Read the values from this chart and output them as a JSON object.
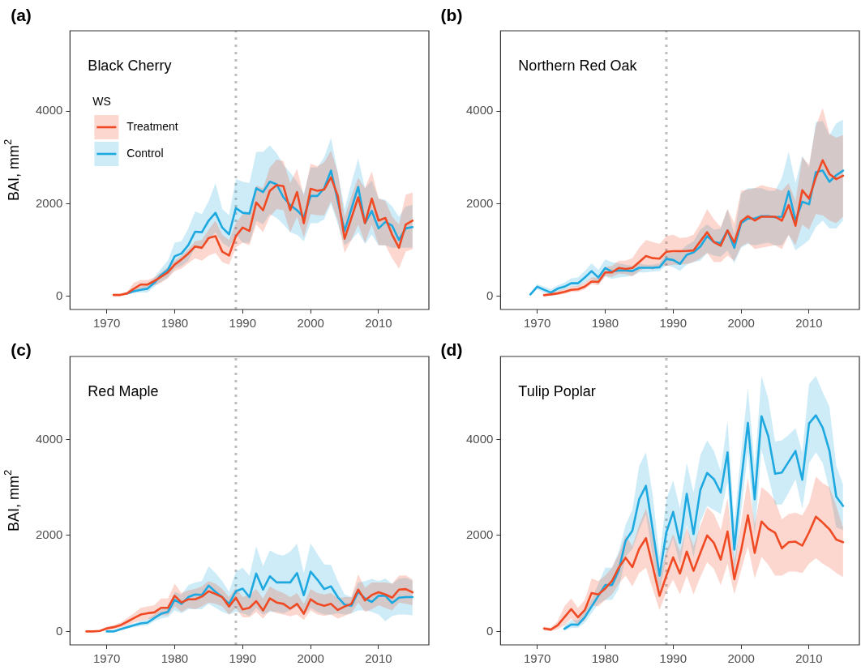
{
  "chart_data": [
    {
      "type": "line",
      "title": "(a)",
      "subtitle": "Black Cherry",
      "ylabel": "BAI, mm$^{2}$",
      "legend": "top left",
      "legend_title": "WS",
      "marker": "none",
      "xlim": [
        1964.6,
        2017.4
      ],
      "xticks": [
        1970,
        1980,
        1990,
        2000,
        2010
      ],
      "ylim": [
        -280,
        5730
      ],
      "yticks": [
        0,
        2000,
        4000
      ],
      "ref_lines": [
        {
          "axis": "x",
          "value": 1989,
          "color": "#bdbdbd",
          "line_style": "dotted"
        }
      ],
      "x": [
        1971,
        1972,
        1973,
        1974,
        1975,
        1976,
        1977,
        1978,
        1979,
        1980,
        1981,
        1982,
        1983,
        1984,
        1985,
        1986,
        1987,
        1988,
        1989,
        1990,
        1991,
        1992,
        1993,
        1994,
        1995,
        1996,
        1997,
        1998,
        1999,
        2000,
        2001,
        2002,
        2003,
        2004,
        2005,
        2006,
        2007,
        2008,
        2009,
        2010,
        2011,
        2012,
        2013,
        2014,
        2015
      ],
      "series": [
        {
          "name": "Treatment",
          "color": "#ef4a24",
          "values": [
            33,
            33,
            67,
            168,
            257,
            257,
            335,
            425,
            520,
            687,
            800,
            927,
            1078,
            1050,
            1263,
            1302,
            967,
            883,
            1302,
            1486,
            1413,
            2028,
            1860,
            2280,
            2402,
            2380,
            1860,
            2252,
            1581,
            2324,
            2280,
            2307,
            2570,
            2168,
            1246,
            1693,
            2140,
            1581,
            2112,
            1637,
            1693,
            1330,
            1050,
            1553,
            1637
          ],
          "upper": [
            60,
            60,
            100,
            296,
            352,
            352,
            408,
            520,
            631,
            771,
            883,
            1022,
            1190,
            1218,
            1441,
            1637,
            1330,
            1218,
            1581,
            1777,
            1833,
            2391,
            2335,
            2782,
            2950,
            2922,
            2447,
            2754,
            2168,
            2866,
            2810,
            2894,
            3145,
            2671,
            1721,
            2168,
            2559,
            2335,
            2699,
            2112,
            2056,
            1721,
            1553,
            2196,
            2240
          ],
          "lower": [
            10,
            10,
            40,
            112,
            168,
            184,
            240,
            296,
            391,
            548,
            603,
            715,
            827,
            771,
            883,
            939,
            743,
            687,
            1050,
            1162,
            1106,
            1553,
            1386,
            1721,
            1888,
            1860,
            1386,
            1721,
            1274,
            1777,
            1749,
            1749,
            2056,
            1637,
            939,
            1218,
            1553,
            1162,
            1553,
            1106,
            1106,
            827,
            603,
            967,
            1022
          ]
        },
        {
          "name": "Control",
          "color": "#1ea8e0",
          "values": [
            null,
            null,
            67,
            112,
            145,
            168,
            296,
            464,
            575,
            866,
            927,
            1106,
            1397,
            1386,
            1637,
            1805,
            1486,
            1341,
            1905,
            1805,
            1788,
            2335,
            2252,
            2475,
            2419,
            2140,
            1972,
            1860,
            1710,
            2168,
            2168,
            2335,
            2715,
            2056,
            1413,
            1888,
            2363,
            1581,
            1844,
            1469,
            1609,
            1525,
            1218,
            1469,
            1497
          ],
          "upper": [
            null,
            null,
            100,
            156,
            212,
            268,
            408,
            603,
            771,
            1162,
            1190,
            1469,
            1833,
            1777,
            2056,
            2447,
            1888,
            1749,
            2531,
            2475,
            2447,
            3118,
            3118,
            3257,
            3090,
            2838,
            2671,
            2475,
            2224,
            2782,
            2782,
            3006,
            3425,
            2671,
            1888,
            2447,
            2978,
            2335,
            2503,
            2112,
            2084,
            1944,
            1721,
            1944,
            1972
          ],
          "lower": [
            null,
            null,
            45,
            73,
            89,
            89,
            212,
            324,
            408,
            603,
            659,
            771,
            1050,
            1022,
            1218,
            1386,
            1162,
            1050,
            1330,
            1162,
            1162,
            1637,
            1553,
            1777,
            1693,
            1553,
            1386,
            1330,
            1190,
            1581,
            1581,
            1665,
            2000,
            1553,
            1106,
            1218,
            1386,
            1134,
            1330,
            1106,
            1106,
            1050,
            1050,
            1050,
            1050
          ]
        }
      ]
    },
    {
      "type": "line",
      "title": "(b)",
      "subtitle": "Northern Red Oak",
      "marker": "none",
      "xlim": [
        1964.6,
        2017.4
      ],
      "xticks": [
        1970,
        1980,
        1990,
        2000,
        2010
      ],
      "ylim": [
        -280,
        5730
      ],
      "yticks": [
        0,
        2000,
        4000
      ],
      "ref_lines": [
        {
          "axis": "x",
          "value": 1989,
          "color": "#bdbdbd",
          "line_style": "dotted"
        }
      ],
      "x": [
        1969,
        1970,
        1971,
        1972,
        1973,
        1974,
        1975,
        1976,
        1977,
        1978,
        1979,
        1980,
        1981,
        1982,
        1983,
        1984,
        1985,
        1986,
        1987,
        1988,
        1989,
        1990,
        1991,
        1992,
        1993,
        1994,
        1995,
        1996,
        1997,
        1998,
        1999,
        2000,
        2001,
        2002,
        2003,
        2004,
        2005,
        2006,
        2007,
        2008,
        2009,
        2010,
        2011,
        2012,
        2013,
        2014,
        2015
      ],
      "series": [
        {
          "color": "#ef4a24",
          "values": [
            null,
            null,
            28,
            45,
            67,
            101,
            145,
            156,
            212,
            324,
            313,
            520,
            520,
            615,
            592,
            615,
            743,
            872,
            827,
            816,
            966,
            978,
            978,
            983,
            994,
            1190,
            1386,
            1173,
            1095,
            1425,
            1162,
            1620,
            1732,
            1637,
            1721,
            1721,
            1721,
            1637,
            1972,
            1525,
            2291,
            2112,
            2570,
            2939,
            2643,
            2531,
            2604
          ],
          "upper": [
            null,
            null,
            56,
            89,
            117,
            156,
            212,
            229,
            296,
            408,
            408,
            631,
            659,
            771,
            771,
            827,
            1050,
            1218,
            1173,
            1134,
            1302,
            1330,
            1263,
            1274,
            1330,
            1581,
            1888,
            1665,
            1497,
            1888,
            1581,
            2280,
            2307,
            2335,
            2402,
            2363,
            2335,
            2280,
            2447,
            2056,
            3006,
            2838,
            3676,
            4068,
            3509,
            3425,
            3481
          ],
          "lower": [
            null,
            null,
            11,
            17,
            34,
            56,
            101,
            101,
            156,
            268,
            240,
            436,
            425,
            492,
            480,
            436,
            547,
            631,
            575,
            659,
            659,
            687,
            687,
            704,
            743,
            827,
            939,
            743,
            743,
            883,
            771,
            1078,
            1162,
            1022,
            1050,
            1078,
            1106,
            1022,
            1330,
            1106,
            1553,
            1441,
            1777,
            1749,
            1637,
            1581,
            1721
          ]
        },
        {
          "color": "#1ea8e0",
          "values": [
            45,
            212,
            145,
            84,
            168,
            212,
            285,
            285,
            408,
            548,
            408,
            615,
            536,
            564,
            559,
            548,
            620,
            620,
            620,
            631,
            810,
            788,
            704,
            899,
            950,
            1078,
            1302,
            1173,
            1151,
            1425,
            1050,
            1581,
            1682,
            1682,
            1732,
            1732,
            1710,
            1721,
            2268,
            1637,
            2045,
            1989,
            2682,
            2715,
            2475,
            2615,
            2715
          ],
          "upper": [
            70,
            268,
            212,
            156,
            240,
            296,
            391,
            408,
            548,
            715,
            575,
            799,
            743,
            715,
            687,
            659,
            715,
            687,
            687,
            715,
            939,
            939,
            967,
            1106,
            1190,
            1441,
            1553,
            1441,
            1469,
            1888,
            1330,
            2224,
            2335,
            2335,
            2335,
            2280,
            2280,
            2559,
            3118,
            2447,
            3034,
            2782,
            3760,
            3788,
            3481,
            3732,
            3816
          ],
          "lower": [
            17,
            156,
            89,
            45,
            112,
            145,
            212,
            212,
            296,
            380,
            268,
            436,
            380,
            408,
            425,
            447,
            520,
            520,
            536,
            548,
            670,
            631,
            548,
            687,
            743,
            771,
            939,
            883,
            855,
            994,
            715,
            1050,
            1134,
            1106,
            1134,
            1162,
            1106,
            1106,
            1330,
            994,
            1106,
            1218,
            1497,
            1637,
            1469,
            1469,
            1637
          ]
        }
      ]
    },
    {
      "type": "line",
      "title": "(c)",
      "subtitle": "Red Maple",
      "ylabel": "BAI, mm$^{2}$",
      "marker": "none",
      "xlim": [
        1964.6,
        2017.4
      ],
      "xticks": [
        1970,
        1980,
        1990,
        2000,
        2010
      ],
      "ylim": [
        -280,
        5730
      ],
      "yticks": [
        0,
        2000,
        4000
      ],
      "ref_lines": [
        {
          "axis": "x",
          "value": 1989,
          "color": "#bdbdbd",
          "line_style": "dotted"
        }
      ],
      "x": [
        1967,
        1968,
        1969,
        1970,
        1971,
        1972,
        1973,
        1974,
        1975,
        1976,
        1977,
        1978,
        1979,
        1980,
        1981,
        1982,
        1983,
        1984,
        1985,
        1986,
        1987,
        1988,
        1989,
        1990,
        1991,
        1992,
        1993,
        1994,
        1995,
        1996,
        1997,
        1998,
        1999,
        2000,
        2001,
        2002,
        2003,
        2004,
        2005,
        2006,
        2007,
        2008,
        2009,
        2010,
        2011,
        2012,
        2013,
        2014,
        2015
      ],
      "series": [
        {
          "color": "#ef4a24",
          "values": [
            0,
            0,
            11,
            61,
            89,
            128,
            201,
            279,
            352,
            380,
            397,
            492,
            492,
            743,
            603,
            670,
            670,
            726,
            838,
            782,
            715,
            520,
            704,
            458,
            492,
            631,
            436,
            687,
            603,
            575,
            475,
            575,
            369,
            670,
            575,
            536,
            575,
            447,
            520,
            575,
            872,
            648,
            760,
            816,
            771,
            704,
            872,
            883,
            816
          ],
          "upper": [
            17,
            17,
            34,
            101,
            128,
            184,
            279,
            380,
            492,
            520,
            548,
            687,
            687,
            994,
            799,
            855,
            883,
            939,
            1050,
            994,
            883,
            715,
            911,
            715,
            771,
            883,
            687,
            939,
            855,
            799,
            715,
            799,
            575,
            883,
            799,
            771,
            799,
            687,
            715,
            715,
            1190,
            911,
            1022,
            1022,
            1022,
            994,
            1162,
            1173,
            1078
          ],
          "lower": [
            0,
            0,
            0,
            22,
            45,
            73,
            128,
            184,
            223,
            257,
            268,
            335,
            335,
            520,
            408,
            492,
            464,
            520,
            603,
            575,
            520,
            352,
            492,
            296,
            296,
            408,
            268,
            436,
            380,
            352,
            313,
            352,
            240,
            436,
            352,
            324,
            352,
            268,
            324,
            380,
            603,
            408,
            464,
            548,
            492,
            436,
            603,
            575,
            548
          ]
        },
        {
          "color": "#1ea8e0",
          "values": [
            null,
            null,
            null,
            0,
            0,
            45,
            89,
            128,
            168,
            184,
            279,
            369,
            408,
            659,
            575,
            715,
            771,
            760,
            955,
            827,
            715,
            575,
            838,
            894,
            715,
            1207,
            872,
            1151,
            1022,
            1022,
            1022,
            1218,
            754,
            1246,
            1078,
            883,
            939,
            715,
            559,
            536,
            827,
            687,
            615,
            743,
            743,
            592,
            704,
            715,
            715
          ],
          "upper": [
            null,
            null,
            null,
            17,
            22,
            73,
            128,
            168,
            223,
            257,
            352,
            464,
            503,
            827,
            771,
            967,
            1022,
            1050,
            1358,
            1218,
            1050,
            827,
            1246,
            1330,
            1162,
            1777,
            1358,
            1693,
            1609,
            1581,
            1665,
            1833,
            1218,
            1833,
            1609,
            1397,
            1386,
            1050,
            771,
            715,
            1022,
            1050,
            1095,
            1050,
            1106,
            994,
            1106,
            1117,
            1062
          ],
          "lower": [
            null,
            null,
            null,
            0,
            0,
            22,
            56,
            89,
            112,
            128,
            212,
            268,
            296,
            436,
            380,
            464,
            464,
            464,
            575,
            492,
            408,
            352,
            408,
            380,
            324,
            492,
            352,
            408,
            408,
            380,
            436,
            520,
            352,
            492,
            408,
            352,
            352,
            380,
            352,
            380,
            436,
            436,
            408,
            352,
            212,
            324,
            352,
            352,
            335
          ]
        }
      ]
    },
    {
      "type": "line",
      "title": "(d)",
      "subtitle": "Tulip Poplar",
      "marker": "none",
      "xlim": [
        1964.6,
        2017.4
      ],
      "xticks": [
        1970,
        1980,
        1990,
        2000,
        2010
      ],
      "ylim": [
        -280,
        5730
      ],
      "yticks": [
        0,
        2000,
        4000
      ],
      "ref_lines": [
        {
          "axis": "x",
          "value": 1989,
          "color": "#bdbdbd",
          "line_style": "dotted"
        }
      ],
      "x": [
        1971,
        1972,
        1973,
        1974,
        1975,
        1976,
        1977,
        1978,
        1979,
        1980,
        1981,
        1982,
        1983,
        1984,
        1985,
        1986,
        1987,
        1988,
        1989,
        1990,
        1991,
        1992,
        1993,
        1994,
        1995,
        1996,
        1997,
        1998,
        1999,
        2000,
        2001,
        2002,
        2003,
        2004,
        2005,
        2006,
        2007,
        2008,
        2009,
        2010,
        2011,
        2012,
        2013,
        2014,
        2015
      ],
      "series": [
        {
          "color": "#ef4a24",
          "values": [
            61,
            39,
            128,
            296,
            464,
            296,
            447,
            799,
            771,
            894,
            1050,
            1330,
            1536,
            1341,
            1721,
            1944,
            1358,
            743,
            1162,
            1542,
            1207,
            1665,
            1263,
            1637,
            2000,
            1844,
            1497,
            2084,
            1089,
            1693,
            2419,
            1637,
            2291,
            2140,
            2056,
            1732,
            1860,
            1872,
            1788,
            2067,
            2391,
            2268,
            2129,
            1916,
            1860
          ],
          "upper": [
            101,
            73,
            212,
            520,
            687,
            492,
            659,
            1106,
            1050,
            1162,
            1330,
            1609,
            2000,
            1777,
            2224,
            2559,
            2000,
            1106,
            1665,
            2028,
            1665,
            2168,
            1777,
            2196,
            2587,
            2447,
            2112,
            2782,
            1441,
            2280,
            3201,
            2224,
            3006,
            2894,
            2726,
            2335,
            2447,
            2475,
            2419,
            2671,
            3229,
            3090,
            3006,
            2615,
            2168
          ],
          "lower": [
            17,
            6,
            45,
            128,
            268,
            128,
            240,
            547,
            520,
            659,
            771,
            994,
            1162,
            939,
            1218,
            1330,
            883,
            436,
            827,
            1078,
            771,
            1162,
            771,
            1134,
            1441,
            1302,
            967,
            1413,
            771,
            1274,
            1777,
            1106,
            1553,
            1386,
            1162,
            1162,
            1246,
            1246,
            1218,
            1413,
            1525,
            1413,
            1330,
            1218,
            1134
          ]
        },
        {
          "color": "#1ea8e0",
          "values": [
            null,
            null,
            null,
            56,
            145,
            140,
            296,
            520,
            743,
            967,
            967,
            1274,
            1888,
            2101,
            2754,
            3034,
            2112,
            1162,
            2067,
            2492,
            1844,
            2866,
            2028,
            2950,
            3302,
            3173,
            2894,
            3732,
            1704,
            3118,
            4347,
            2754,
            4486,
            4067,
            3285,
            3313,
            3537,
            3760,
            3162,
            4335,
            4503,
            4246,
            3760,
            2810,
            2615
          ],
          "upper": [
            null,
            null,
            null,
            128,
            240,
            240,
            436,
            659,
            994,
            1330,
            1330,
            1665,
            2224,
            2531,
            3453,
            3732,
            2838,
            1553,
            2754,
            3145,
            2559,
            3509,
            2894,
            3676,
            3983,
            3760,
            3341,
            4402,
            2280,
            3732,
            5073,
            3453,
            5324,
            4849,
            3956,
            3983,
            4095,
            4235,
            3732,
            5157,
            5324,
            4989,
            4682,
            3453,
            3062
          ],
          "lower": [
            null,
            null,
            null,
            17,
            73,
            73,
            184,
            380,
            575,
            659,
            659,
            883,
            1553,
            1721,
            2112,
            2447,
            1553,
            799,
            1553,
            1944,
            1386,
            2224,
            1553,
            2280,
            2615,
            2531,
            2447,
            3118,
            1162,
            2503,
            3732,
            2000,
            3788,
            3229,
            2643,
            2643,
            2894,
            3173,
            2559,
            3509,
            3732,
            3509,
            2950,
            2168,
            2112
          ]
        }
      ]
    }
  ]
}
